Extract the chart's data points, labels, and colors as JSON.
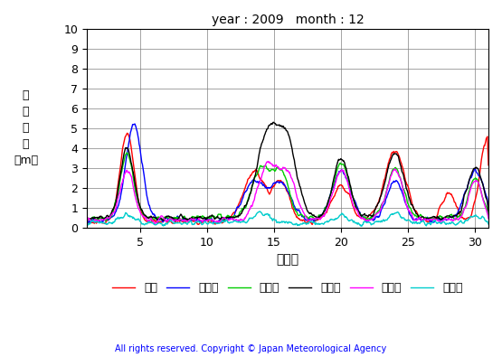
{
  "title": "year : 2009   month : 12",
  "ylabel_vertical": "有\n義\n波\n高\n（m）",
  "xlabel": "（日）",
  "xlim": [
    1,
    31
  ],
  "ylim": [
    0,
    10
  ],
  "yticks": [
    0,
    1,
    2,
    3,
    4,
    5,
    6,
    7,
    8,
    9,
    10
  ],
  "xticks": [
    5,
    10,
    15,
    20,
    25,
    30
  ],
  "copyright": "All rights reserved. Copyright © Japan Meteorological Agency",
  "series": [
    {
      "label": "松前",
      "color": "#ff0000"
    },
    {
      "label": "江ノ島",
      "color": "#0000ff"
    },
    {
      "label": "石廊崎",
      "color": "#00cc00"
    },
    {
      "label": "経ヶ岬",
      "color": "#000000"
    },
    {
      "label": "福江島",
      "color": "#ff00ff"
    },
    {
      "label": "佐多岬",
      "color": "#00cccc"
    }
  ]
}
